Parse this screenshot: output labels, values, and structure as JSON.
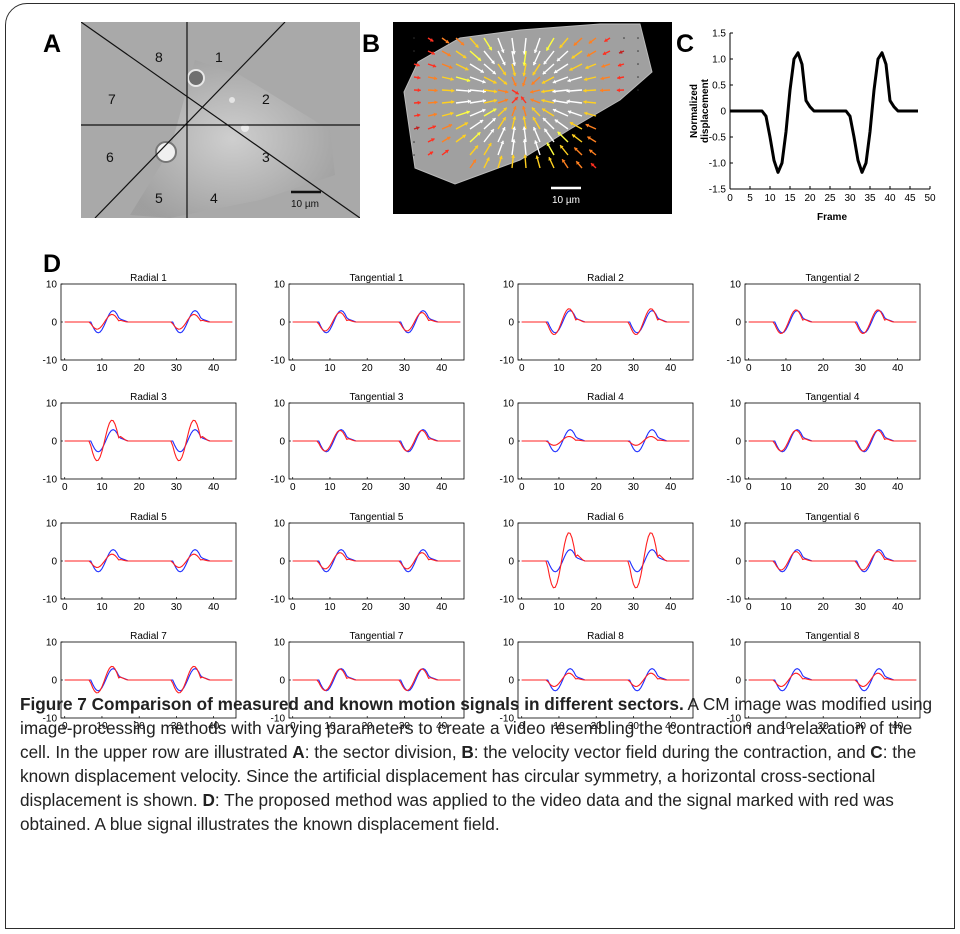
{
  "panel_labels": {
    "a": "A",
    "b": "B",
    "c": "C",
    "d": "D"
  },
  "panel_a": {
    "sector_labels": [
      "1",
      "2",
      "3",
      "4",
      "5",
      "6",
      "7",
      "8"
    ],
    "scale_bar": "10 µm"
  },
  "panel_b": {
    "scale_bar": "10 µm"
  },
  "caption": {
    "title": "Figure 7 Comparison of measured and known motion signals in different sectors.",
    "p1": " A CM image was modified using image-processing methods with varying parameters to create a video resembling the contraction and relaxation of the cell. In the upper row are illustrated ",
    "a": "A",
    "p2": ": the sector division, ",
    "b": "B",
    "p3": ": the velocity vector field during the contraction, and ",
    "c": "C",
    "p4": ": the known displacement velocity. Since the artificial displacement has circular symmetry, a horizontal cross-sectional displacement is shown. ",
    "d": "D",
    "p5": ": The proposed method was applied to the video data and the signal marked with red was obtained. A blue signal illustrates the known displacement field."
  },
  "colors": {
    "measured": "#ff2020",
    "known": "#1f2fff",
    "axis": "#000000"
  },
  "chart_data": [
    {
      "panel": "C",
      "type": "line",
      "xlabel": "Frame",
      "ylabel": "Normalized displacement",
      "xlim": [
        0,
        50
      ],
      "ylim": [
        -1.5,
        1.5
      ],
      "xticks": [
        "0",
        "5",
        "10",
        "15",
        "20",
        "25",
        "30",
        "35",
        "40",
        "45",
        "50"
      ],
      "yticks": [
        "1.5",
        "1.0",
        "0.5",
        "0",
        "-0.5",
        "-1.0",
        "-1.5"
      ],
      "x": [
        0,
        8,
        9,
        10,
        11,
        12,
        13,
        14,
        15,
        16,
        17,
        18,
        19,
        20,
        21,
        29,
        30,
        31,
        32,
        33,
        34,
        35,
        36,
        37,
        38,
        39,
        40,
        41,
        42,
        47
      ],
      "y": [
        0,
        0,
        -0.1,
        -0.5,
        -0.95,
        -1.18,
        -1.0,
        -0.4,
        0.4,
        1.0,
        1.12,
        0.9,
        0.2,
        0.08,
        0,
        0,
        -0.1,
        -0.5,
        -0.95,
        -1.18,
        -1.0,
        -0.4,
        0.4,
        1.0,
        1.12,
        0.9,
        0.2,
        0.08,
        0,
        0
      ]
    },
    {
      "panel": "D",
      "type": "line",
      "xlim": [
        -1,
        46
      ],
      "ylim": [
        -10,
        10
      ],
      "xticks": [
        "0",
        "10",
        "20",
        "30",
        "40"
      ],
      "yticks": [
        "10",
        "0",
        "-10"
      ],
      "subplots": [
        {
          "title": "Radial 1",
          "blue_amp": 3,
          "red_amp": 2
        },
        {
          "title": "Tangential 1",
          "blue_amp": 3,
          "red_amp": 2.5
        },
        {
          "title": "Radial 2",
          "blue_amp": 3,
          "red_amp": 3.5
        },
        {
          "title": "Tangential 2",
          "blue_amp": 3,
          "red_amp": 3.2
        },
        {
          "title": "Radial 3",
          "blue_amp": 3,
          "red_amp": 5.5
        },
        {
          "title": "Tangential 3",
          "blue_amp": 3,
          "red_amp": 2.8
        },
        {
          "title": "Radial 4",
          "blue_amp": 3,
          "red_amp": 1.2
        },
        {
          "title": "Tangential 4",
          "blue_amp": 3,
          "red_amp": 2.8
        },
        {
          "title": "Radial 5",
          "blue_amp": 3,
          "red_amp": 1.8
        },
        {
          "title": "Tangential 5",
          "blue_amp": 3,
          "red_amp": 2.2
        },
        {
          "title": "Radial 6",
          "blue_amp": 3,
          "red_amp": 7.5
        },
        {
          "title": "Tangential 6",
          "blue_amp": 3,
          "red_amp": 2.5
        },
        {
          "title": "Radial 7",
          "blue_amp": 3,
          "red_amp": 3.6
        },
        {
          "title": "Tangential 7",
          "blue_amp": 3,
          "red_amp": 2.9
        },
        {
          "title": "Radial 8",
          "blue_amp": 3,
          "red_amp": 1.8
        },
        {
          "title": "Tangential 8",
          "blue_amp": 3,
          "red_amp": 1.8
        }
      ]
    }
  ]
}
